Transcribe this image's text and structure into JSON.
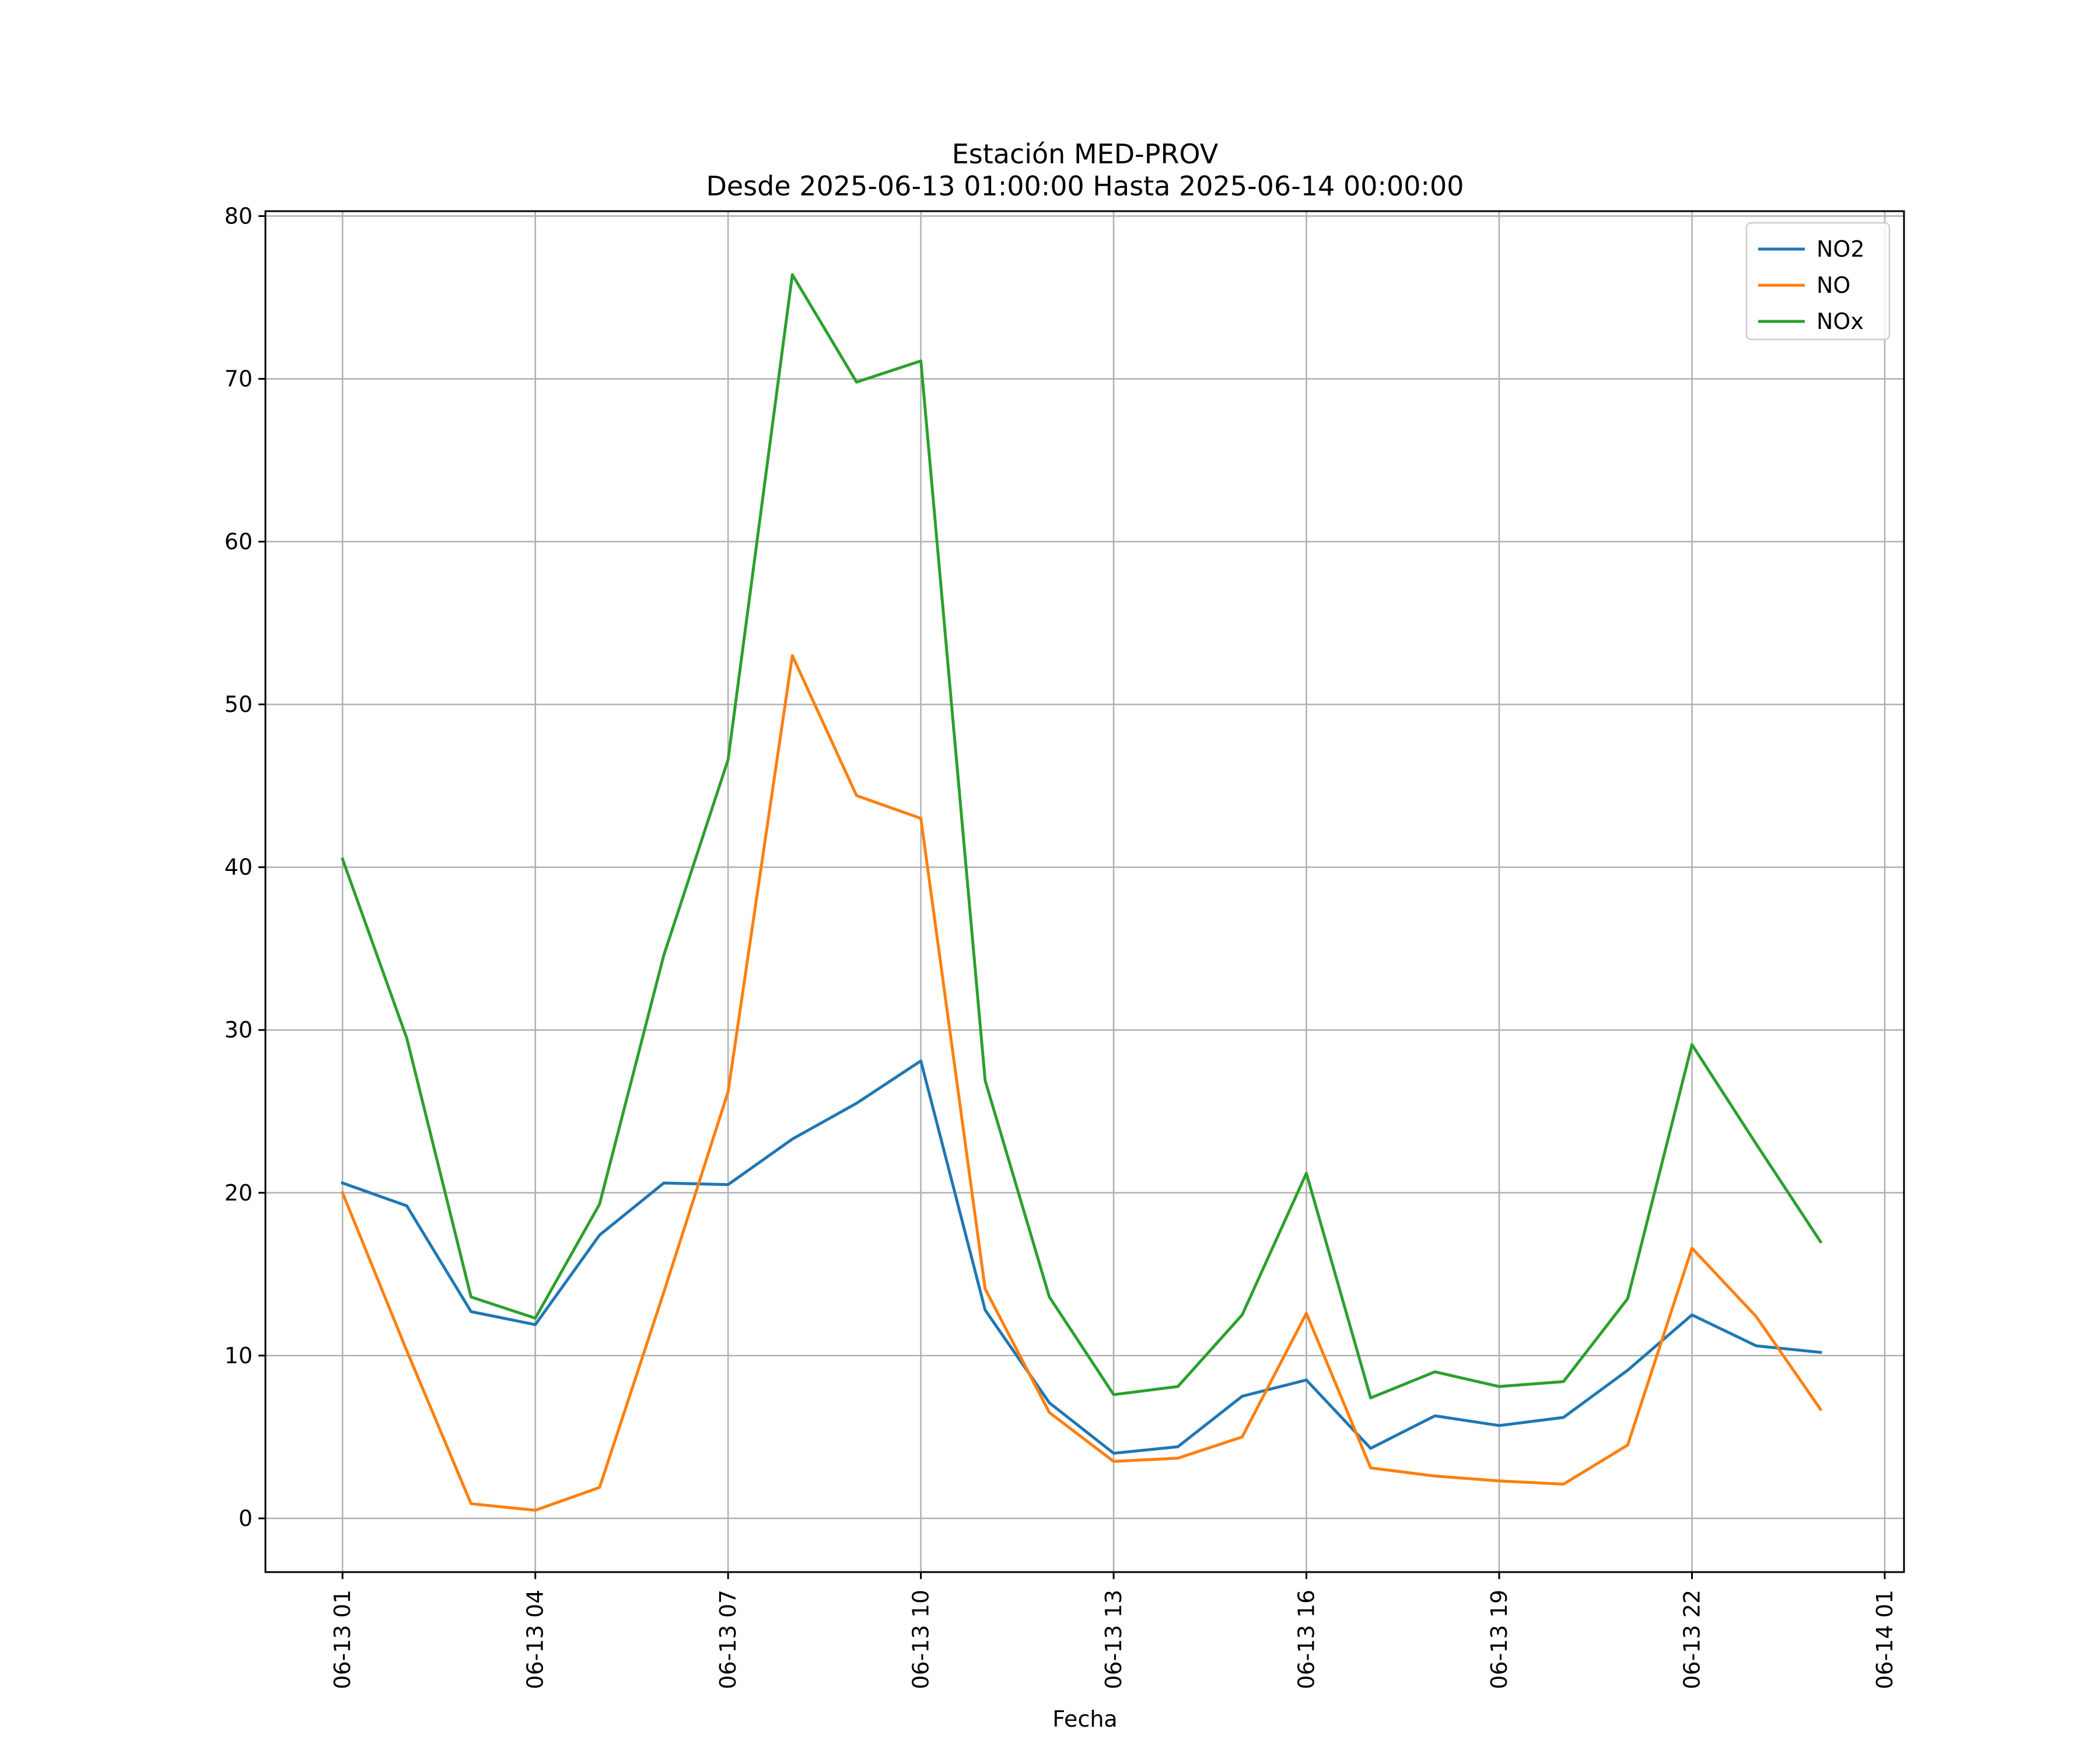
{
  "chart_data": {
    "type": "line",
    "title_line1": "Estación MED-PROV",
    "title_line2": "Desde 2025-06-13 01:00:00 Hasta 2025-06-14 00:00:00",
    "xlabel": "Fecha",
    "ylabel": "",
    "ylim": [
      -3.3,
      80.3
    ],
    "xlim_hours": [
      -1.2,
      24.3
    ],
    "grid": true,
    "legend_position": "top-right",
    "x_ticks": [
      "06-13 01",
      "06-13 04",
      "06-13 07",
      "06-13 10",
      "06-13 13",
      "06-13 16",
      "06-13 19",
      "06-13 22",
      "06-14 01"
    ],
    "y_ticks": [
      "0",
      "10",
      "20",
      "30",
      "40",
      "50",
      "60",
      "70",
      "80"
    ],
    "x": [
      "2025-06-13 01:00",
      "2025-06-13 02:00",
      "2025-06-13 03:00",
      "2025-06-13 04:00",
      "2025-06-13 05:00",
      "2025-06-13 06:00",
      "2025-06-13 07:00",
      "2025-06-13 08:00",
      "2025-06-13 09:00",
      "2025-06-13 10:00",
      "2025-06-13 11:00",
      "2025-06-13 12:00",
      "2025-06-13 13:00",
      "2025-06-13 14:00",
      "2025-06-13 15:00",
      "2025-06-13 16:00",
      "2025-06-13 17:00",
      "2025-06-13 18:00",
      "2025-06-13 19:00",
      "2025-06-13 20:00",
      "2025-06-13 21:00",
      "2025-06-13 22:00",
      "2025-06-13 23:00",
      "2025-06-14 00:00"
    ],
    "series": [
      {
        "name": "NO2",
        "color": "#1f77b4",
        "values": [
          20.6,
          19.2,
          12.7,
          11.9,
          17.4,
          20.6,
          20.5,
          23.3,
          25.5,
          28.1,
          12.8,
          7.1,
          4.0,
          4.4,
          7.5,
          8.5,
          4.3,
          6.3,
          5.7,
          6.2,
          9.1,
          12.5,
          10.6,
          10.2
        ]
      },
      {
        "name": "NO",
        "color": "#ff7f0e",
        "values": [
          20.0,
          10.3,
          0.9,
          0.5,
          1.9,
          13.9,
          26.2,
          53.0,
          44.4,
          43.0,
          14.1,
          6.5,
          3.5,
          3.7,
          5.0,
          12.6,
          3.1,
          2.6,
          2.3,
          2.1,
          4.5,
          16.6,
          12.4,
          6.7
        ]
      },
      {
        "name": "NOx",
        "color": "#2ca02c",
        "values": [
          40.5,
          29.5,
          13.6,
          12.3,
          19.3,
          34.6,
          46.6,
          76.4,
          69.8,
          71.1,
          26.9,
          13.6,
          7.6,
          8.1,
          12.5,
          21.2,
          7.4,
          9.0,
          8.1,
          8.4,
          13.5,
          29.1,
          23.0,
          17.0
        ]
      }
    ]
  }
}
